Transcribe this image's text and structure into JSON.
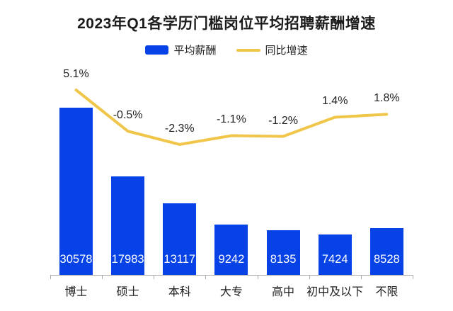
{
  "title": "2023年Q1各学历门槛岗位平均招聘薪酬增速",
  "legend": [
    {
      "label": "平均薪酬",
      "marker": "bar-swatch",
      "color": "#0642e6"
    },
    {
      "label": "同比增速",
      "marker": "line-swatch",
      "color": "#f0c64a"
    }
  ],
  "chart_data": {
    "type": "bar",
    "subtype": "bar-with-line-overlay",
    "title": "2023年Q1各学历门槛岗位平均招聘薪酬增速",
    "categories": [
      "博士",
      "硕士",
      "本科",
      "大专",
      "高中",
      "初中及以下",
      "不限"
    ],
    "series": [
      {
        "name": "平均薪酬",
        "type": "bar",
        "color": "#0642e6",
        "values": [
          30578,
          17983,
          13117,
          9242,
          8135,
          7424,
          8528
        ]
      },
      {
        "name": "同比增速",
        "type": "line",
        "color": "#f0c64a",
        "unit": "%",
        "values": [
          5.1,
          -0.5,
          -2.3,
          -1.1,
          -1.2,
          1.4,
          1.8
        ]
      }
    ],
    "legend_position": "top",
    "grid": false,
    "value_labels_shown": true,
    "xlabel": "",
    "ylabel": ""
  },
  "colors": {
    "background": "#ffffff",
    "bar": "#0642e6",
    "line": "#f0c64a",
    "text": "#212121",
    "bar_value_text": "#ffffff",
    "axis": "#ababab"
  }
}
